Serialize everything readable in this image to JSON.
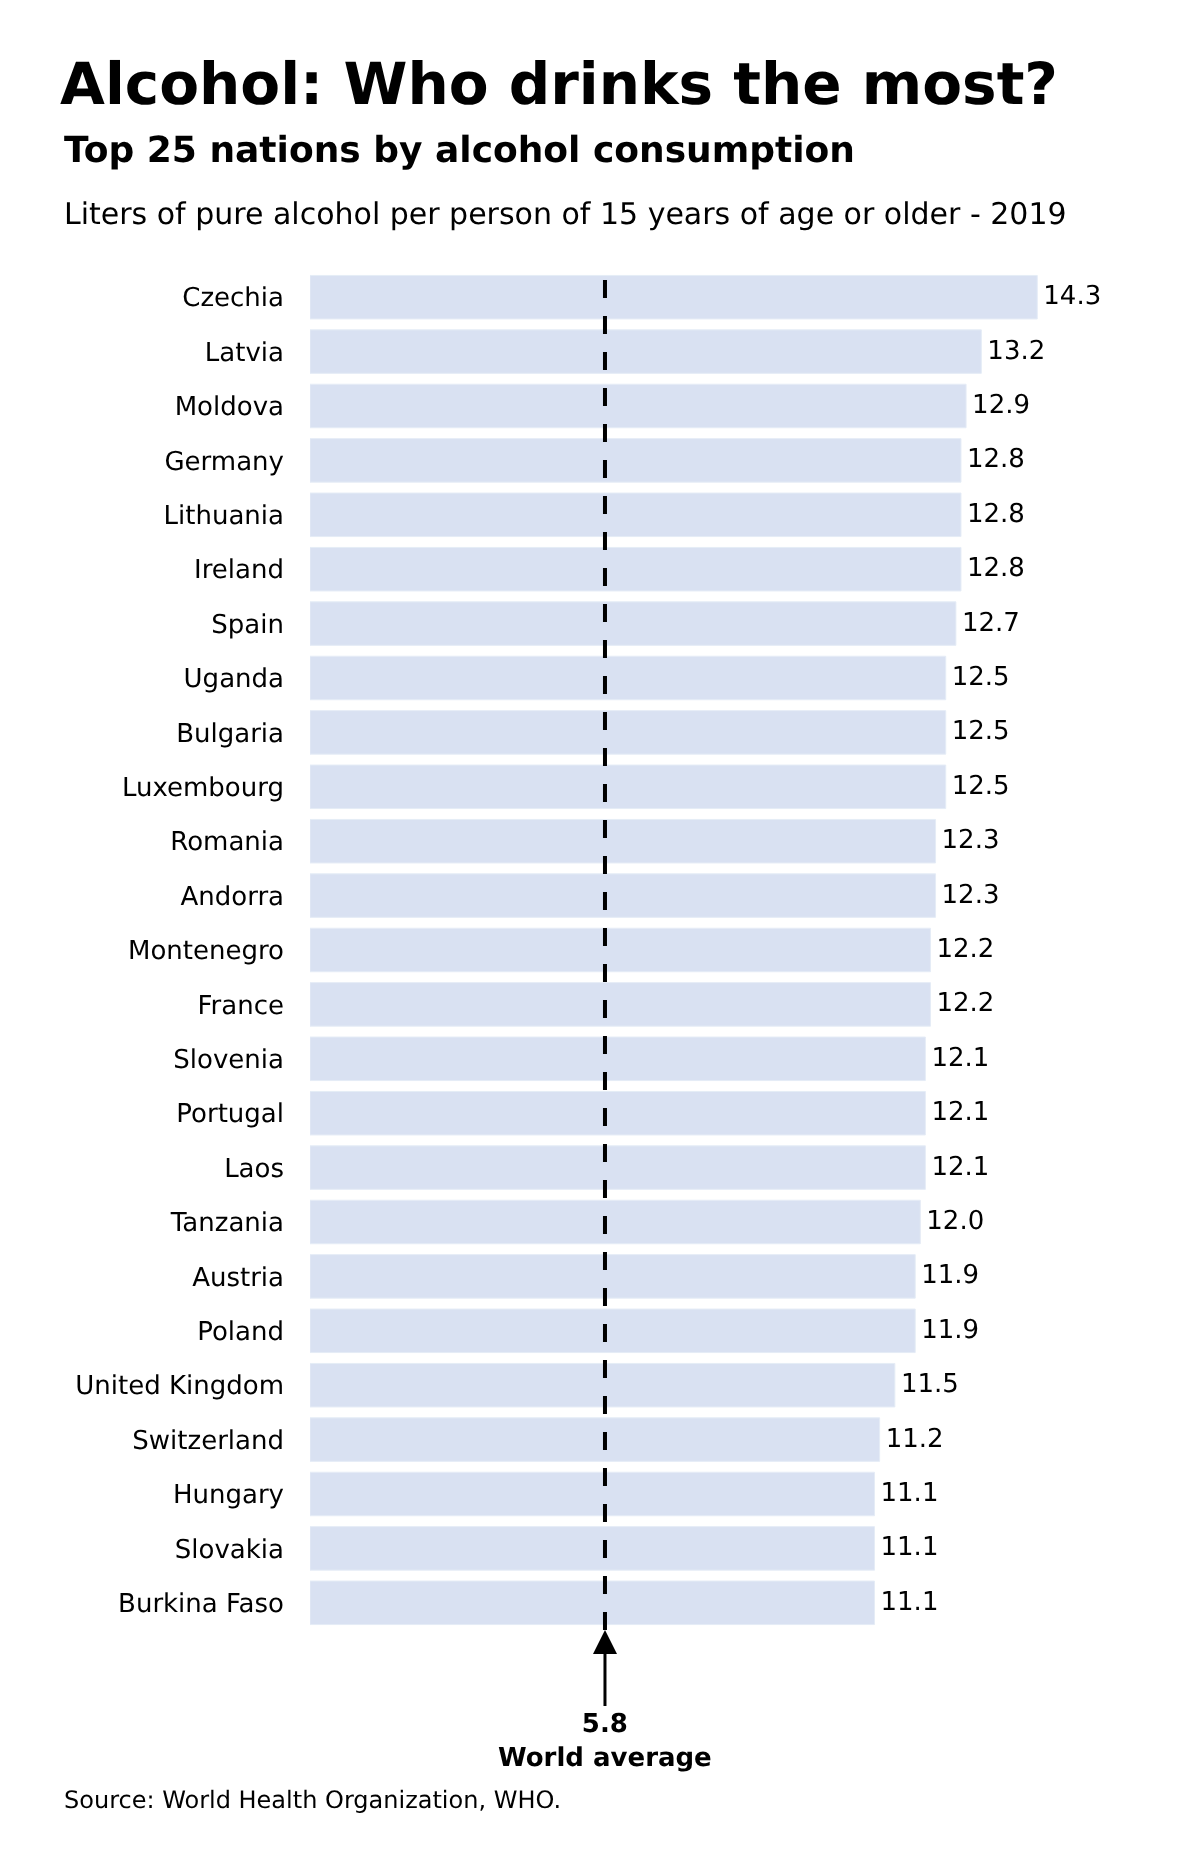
{
  "chart_data": {
    "type": "bar",
    "orientation": "horizontal",
    "title": "Alcohol: Who drinks the most?",
    "subtitle": "Top 25 nations by alcohol consumption",
    "annotations": [
      "Liters of pure alcohol per person of 15 years of age or older - 2019",
      "Source: World Health Organization, WHO."
    ],
    "categories": [
      "Czechia",
      "Latvia",
      "Moldova",
      "Germany",
      "Lithuania",
      "Ireland",
      "Spain",
      "Uganda",
      "Bulgaria",
      "Luxembourg",
      "Romania",
      "Andorra",
      "Montenegro",
      "France",
      "Slovenia",
      "Portugal",
      "Laos",
      "Tanzania",
      "Austria",
      "Poland",
      "United Kingdom",
      "Switzerland",
      "Hungary",
      "Slovakia",
      "Burkina Faso"
    ],
    "values": [
      14.3,
      13.2,
      12.9,
      12.8,
      12.8,
      12.8,
      12.7,
      12.5,
      12.5,
      12.5,
      12.3,
      12.3,
      12.2,
      12.2,
      12.1,
      12.1,
      12.1,
      12.0,
      11.9,
      11.9,
      11.5,
      11.2,
      11.1,
      11.1,
      11.1
    ],
    "value_labels": [
      "14.3",
      "13.2",
      "12.9",
      "12.8",
      "12.8",
      "12.8",
      "12.7",
      "12.5",
      "12.5",
      "12.5",
      "12.3",
      "12.3",
      "12.2",
      "12.2",
      "12.1",
      "12.1",
      "12.1",
      "12.0",
      "11.9",
      "11.9",
      "11.5",
      "11.2",
      "11.1",
      "11.1",
      "11.1"
    ],
    "color": "#d9e1f2",
    "ref_lines": [
      {
        "axis": "x",
        "value": 5.8,
        "label": "5.8\nWorld average",
        "color": "#000000",
        "line_style": "dashed"
      }
    ],
    "data_labels": true
  }
}
